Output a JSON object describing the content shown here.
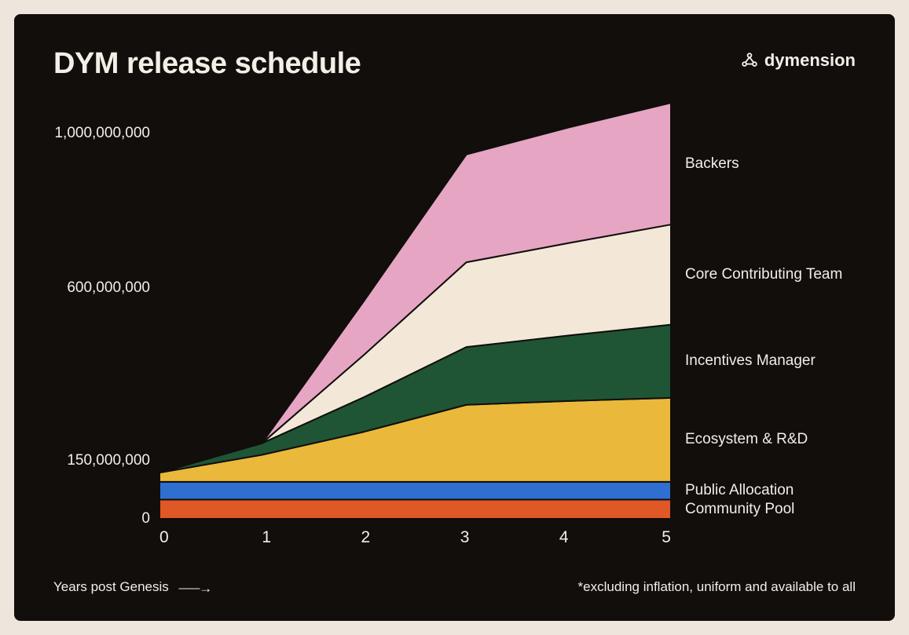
{
  "page_background": "#eee5dc",
  "card_background": "#110e0c",
  "text_color": "#f3eee6",
  "title": "DYM release schedule",
  "brand": "dymension",
  "chart": {
    "type": "stacked-area",
    "xlim": [
      0,
      5
    ],
    "ylim": [
      0,
      1080000000
    ],
    "y_ticks": [
      {
        "value": 0,
        "label": "0"
      },
      {
        "value": 150000000,
        "label": "150,000,000"
      },
      {
        "value": 600000000,
        "label": "600,000,000"
      },
      {
        "value": 1000000000,
        "label": "1,000,000,000"
      }
    ],
    "x_ticks": [
      "0",
      "1",
      "2",
      "3",
      "4",
      "5"
    ],
    "x_label": "Years post Genesis",
    "footnote": "*excluding inflation, uniform and available to all",
    "stroke_color": "#110e0c",
    "stroke_width": 2,
    "series": [
      {
        "name": "Community Pool",
        "color": "#e05826",
        "values": [
          50000000,
          50000000,
          50000000,
          50000000,
          50000000,
          50000000
        ]
      },
      {
        "name": "Public Allocation",
        "color": "#2f6fd0",
        "values": [
          46000000,
          46000000,
          46000000,
          46000000,
          46000000,
          46000000
        ]
      },
      {
        "name": "Ecosystem & R&D",
        "color": "#eab93b",
        "values": [
          24000000,
          70000000,
          130000000,
          200000000,
          210000000,
          218000000
        ]
      },
      {
        "name": "Incentives Manager",
        "color": "#1f5535",
        "values": [
          0,
          30000000,
          90000000,
          150000000,
          170000000,
          190000000
        ]
      },
      {
        "name": "Core Contributing Team",
        "color": "#f3e8d8",
        "values": [
          0,
          0,
          110000000,
          220000000,
          240000000,
          260000000
        ]
      },
      {
        "name": "Backers",
        "color": "#e6a5c3",
        "values": [
          0,
          0,
          140000000,
          280000000,
          300000000,
          316000000
        ]
      }
    ]
  },
  "fonts": {
    "title_size": 38,
    "axis_size": 19,
    "legend_size": 19
  }
}
